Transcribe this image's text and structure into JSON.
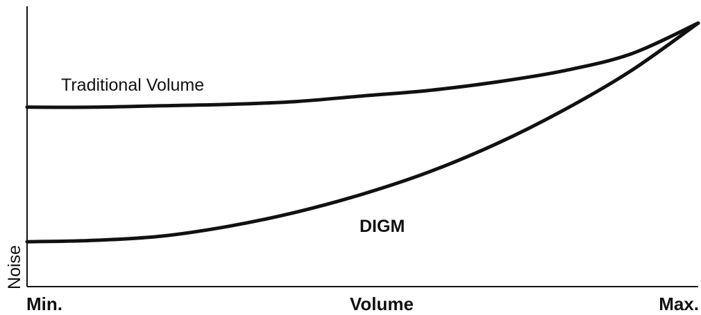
{
  "chart_data": {
    "type": "line",
    "xlabel": "Volume",
    "ylabel": "Noise",
    "x_ticks": [
      "Min.",
      "Max."
    ],
    "xlim": [
      0,
      1
    ],
    "ylim": [
      0,
      1
    ],
    "grid": false,
    "legend": "inline",
    "series": [
      {
        "name": "Traditional Volume",
        "x": [
          0,
          0.1,
          0.2,
          0.3,
          0.4,
          0.5,
          0.6,
          0.7,
          0.8,
          0.9,
          1.0
        ],
        "y": [
          0.64,
          0.64,
          0.645,
          0.65,
          0.66,
          0.68,
          0.7,
          0.73,
          0.77,
          0.83,
          0.94
        ]
      },
      {
        "name": "DIGM",
        "x": [
          0,
          0.1,
          0.2,
          0.3,
          0.4,
          0.5,
          0.6,
          0.7,
          0.8,
          0.9,
          1.0
        ],
        "y": [
          0.16,
          0.165,
          0.18,
          0.215,
          0.265,
          0.33,
          0.41,
          0.51,
          0.63,
          0.77,
          0.94
        ]
      }
    ]
  }
}
